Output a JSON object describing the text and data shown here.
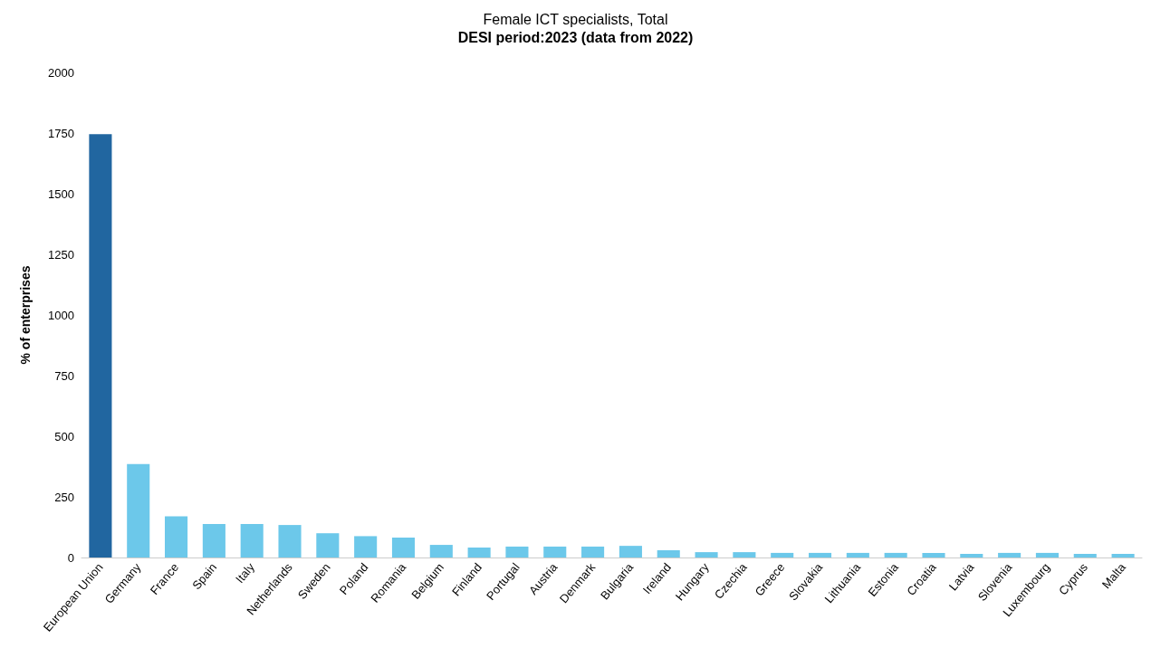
{
  "chart_data": {
    "type": "bar",
    "title": "Female ICT specialists, Total",
    "subtitle": "DESI period:2023 (data from 2022)",
    "ylabel": "% of enterprises",
    "categories": [
      "European Union",
      "Germany",
      "France",
      "Spain",
      "Italy",
      "Netherlands",
      "Sweden",
      "Poland",
      "Romania",
      "Belgium",
      "Finland",
      "Portugal",
      "Austria",
      "Denmark",
      "Bulgaria",
      "Ireland",
      "Hungary",
      "Czechia",
      "Greece",
      "Slovakia",
      "Lithuania",
      "Estonia",
      "Croatia",
      "Latvia",
      "Slovenia",
      "Luxembourg",
      "Cyprus",
      "Malta"
    ],
    "values": [
      1745,
      385,
      170,
      138,
      138,
      134,
      100,
      88,
      82,
      52,
      41,
      45,
      45,
      45,
      48,
      30,
      22,
      22,
      19,
      19,
      19,
      19,
      19,
      15,
      19,
      19,
      15,
      15
    ],
    "colors": [
      "#2166a0",
      "#6cc8ea",
      "#6cc8ea",
      "#6cc8ea",
      "#6cc8ea",
      "#6cc8ea",
      "#6cc8ea",
      "#6cc8ea",
      "#6cc8ea",
      "#6cc8ea",
      "#6cc8ea",
      "#6cc8ea",
      "#6cc8ea",
      "#6cc8ea",
      "#6cc8ea",
      "#6cc8ea",
      "#6cc8ea",
      "#6cc8ea",
      "#6cc8ea",
      "#6cc8ea",
      "#6cc8ea",
      "#6cc8ea",
      "#6cc8ea",
      "#6cc8ea",
      "#6cc8ea",
      "#6cc8ea",
      "#6cc8ea",
      "#6cc8ea"
    ],
    "ylim": [
      0,
      2000
    ],
    "yticks": [
      0,
      250,
      500,
      750,
      1000,
      1250,
      1500,
      1750,
      2000
    ],
    "grid": false
  }
}
